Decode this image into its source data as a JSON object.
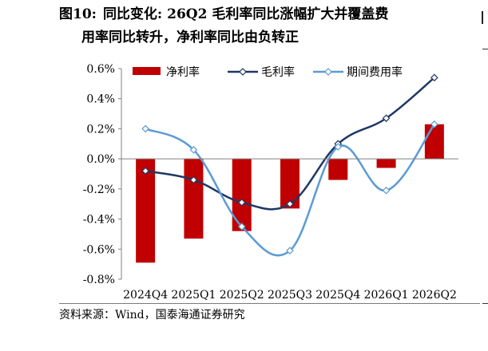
{
  "figure": {
    "label": "图10:",
    "title_line1": "同比变化: 26Q2 毛利率同比涨幅扩大并覆盖费",
    "title_line2": "用率同比转升，净利率同比由负转正",
    "source": "资料来源：Wind，国泰海通证券研究"
  },
  "colors": {
    "net_margin": "#c00000",
    "gross_margin": "#1f3864",
    "expense_ratio": "#5b9bd5",
    "title_rule": "#b7000a"
  },
  "chart_data": {
    "type": "bar",
    "categories": [
      "2024Q4",
      "2025Q1",
      "2025Q2",
      "2025Q3",
      "2025Q4",
      "2026Q1",
      "2026Q2"
    ],
    "y_unit": "%",
    "ylim": [
      -0.8,
      0.6
    ],
    "yticks": [
      -0.8,
      -0.6,
      -0.4,
      -0.2,
      0.0,
      0.2,
      0.4,
      0.6
    ],
    "ytick_labels": [
      "-0.8%",
      "-0.6%",
      "-0.4%",
      "-0.2%",
      "0.0%",
      "0.2%",
      "0.4%",
      "0.6%"
    ],
    "legend_position": "top",
    "grid": false,
    "series": [
      {
        "name": "净利率",
        "kind": "bar",
        "color": "#c00000",
        "values": [
          -0.69,
          -0.53,
          -0.48,
          -0.33,
          -0.14,
          -0.06,
          0.23
        ]
      },
      {
        "name": "毛利率",
        "kind": "line",
        "marker": "diamond",
        "color": "#1f3864",
        "values": [
          -0.08,
          -0.14,
          -0.29,
          -0.3,
          0.1,
          0.27,
          0.54
        ]
      },
      {
        "name": "期间费用率",
        "kind": "line",
        "marker": "diamond",
        "color": "#5b9bd5",
        "values": [
          0.2,
          0.06,
          -0.45,
          -0.61,
          0.08,
          -0.21,
          0.23
        ]
      }
    ]
  }
}
